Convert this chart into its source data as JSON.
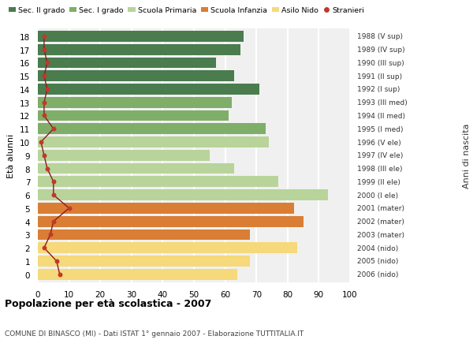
{
  "ages": [
    18,
    17,
    16,
    15,
    14,
    13,
    12,
    11,
    10,
    9,
    8,
    7,
    6,
    5,
    4,
    3,
    2,
    1,
    0
  ],
  "labels_right": [
    "1988 (V sup)",
    "1989 (IV sup)",
    "1990 (III sup)",
    "1991 (II sup)",
    "1992 (I sup)",
    "1993 (III med)",
    "1994 (II med)",
    "1995 (I med)",
    "1996 (V ele)",
    "1997 (IV ele)",
    "1998 (III ele)",
    "1999 (II ele)",
    "2000 (I ele)",
    "2001 (mater)",
    "2002 (mater)",
    "2003 (mater)",
    "2004 (nido)",
    "2005 (nido)",
    "2006 (nido)"
  ],
  "bar_values": [
    66,
    65,
    57,
    63,
    71,
    62,
    61,
    73,
    74,
    55,
    63,
    77,
    93,
    82,
    85,
    68,
    83,
    68,
    64
  ],
  "bar_colors": [
    "#4a7c4e",
    "#4a7c4e",
    "#4a7c4e",
    "#4a7c4e",
    "#4a7c4e",
    "#7fae68",
    "#7fae68",
    "#7fae68",
    "#b8d49a",
    "#b8d49a",
    "#b8d49a",
    "#b8d49a",
    "#b8d49a",
    "#d97e34",
    "#d97e34",
    "#d97e34",
    "#f5d97a",
    "#f5d97a",
    "#f5d97a"
  ],
  "stranieri_values": [
    2,
    2,
    3,
    2,
    3,
    2,
    2,
    5,
    1,
    2,
    3,
    5,
    5,
    10,
    5,
    4,
    2,
    6,
    7
  ],
  "legend_labels": [
    "Sec. II grado",
    "Sec. I grado",
    "Scuola Primaria",
    "Scuola Infanzia",
    "Asilo Nido",
    "Stranieri"
  ],
  "legend_colors": [
    "#4a7c4e",
    "#7fae68",
    "#b8d49a",
    "#d97e34",
    "#f5d97a",
    "#c0392b"
  ],
  "title": "Popolazione per età scolastica - 2007",
  "subtitle": "COMUNE DI BINASCO (MI) - Dati ISTAT 1° gennaio 2007 - Elaborazione TUTTITALIA.IT",
  "ylabel": "Età alunni",
  "ylabel_right": "Anni di nascita",
  "xlim": [
    0,
    100
  ],
  "xticks": [
    0,
    10,
    20,
    30,
    40,
    50,
    60,
    70,
    80,
    90,
    100
  ],
  "background_color": "#f0f0f0",
  "grid_color": "#ffffff",
  "bar_height": 0.82
}
